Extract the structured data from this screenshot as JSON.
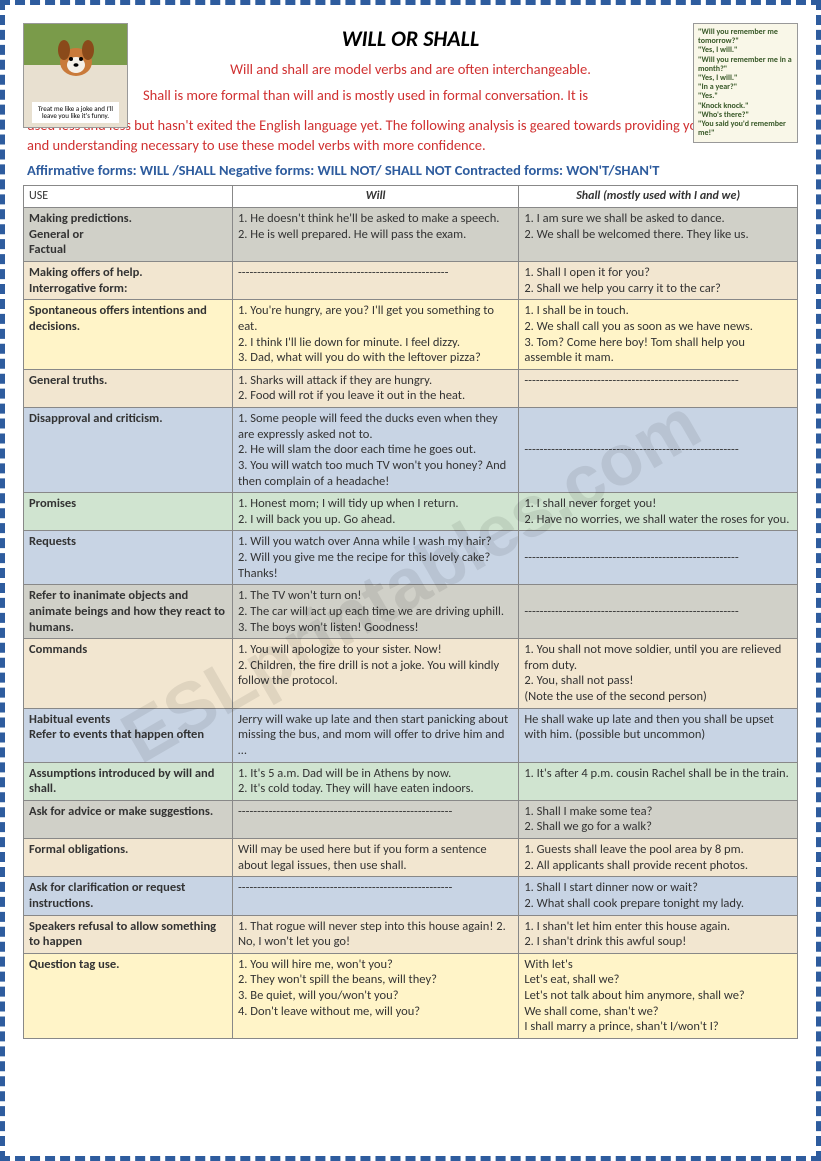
{
  "title": "WILL OR SHALL",
  "dog_caption": "Treat me like a joke and I'll leave you like it's funny.",
  "joke_lines": "\"Will you remember me tomorrow?\"\n\"Yes, I will.\"\n\"Will you remember me in a month?\"\n\"Yes, I will.\"\n\"In a year?\"\n\"Yes.\"\n\"Knock knock.\"\n\"Who's there?\"\n\"You said you'd remember me!\"",
  "intro1": "Will and shall are model verbs and are often interchangeable.",
  "intro2": "Shall is more formal than will and is mostly used in formal conversation. It is",
  "intro_rest": "used less and less but hasn't exited the English language yet. The following analysis is geared towards providing you with the tools and understanding necessary to use these model verbs with more confidence.",
  "forms_line": "Affirmative forms:  WILL /SHALL     Negative forms: WILL NOT/ SHALL NOT   Contracted forms: WON'T/SHAN'T",
  "head_use": "USE",
  "head_will": "Will",
  "head_shall": "Shall  (mostly used with I and we)",
  "rows": [
    {
      "bg": "bg-gray",
      "use": "Making predictions.\nGeneral or\nFactual",
      "will": "1. He doesn't think he'll be asked to make a speech.\n2. He is well prepared. He will pass the exam.",
      "shall": "1. I am sure we shall be asked to dance.\n2. We shall be welcomed there. They like us."
    },
    {
      "bg": "bg-tan",
      "use": "Making offers of help.\nInterrogative form:",
      "will": "-------------------------------------------------------",
      "shall": "1. Shall I open it for you?\n2. Shall we help you carry it to the car?"
    },
    {
      "bg": "bg-yel",
      "use": "Spontaneous offers intentions and decisions.",
      "will": "1. You're hungry, are you? I'll get you something to eat.\n2. I think I'll lie down for minute. I feel dizzy.\n3. Dad, what will you do with the leftover pizza?",
      "shall": "1. I shall be in touch.\n2. We shall call you as soon as we have news.\n3. Tom? Come here boy! Tom shall help you assemble it mam."
    },
    {
      "bg": "bg-tan",
      "use": "General truths.",
      "will": "1. Sharks will attack if they are hungry.\n2. Food will rot if you leave it out in the heat.",
      "shall": "--------------------------------------------------------"
    },
    {
      "bg": "bg-blue",
      "use": "Disapproval  and criticism.",
      "will": "1. Some people will feed the ducks even when they are expressly asked not to.\n2. He will slam the door each time he goes out.\n3. You will watch too much TV won't you honey? And then complain of a headache!",
      "shall": "\n\n--------------------------------------------------------"
    },
    {
      "bg": "bg-grn",
      "use": "Promises",
      "will": "1. Honest mom; I will tidy up when I return.\n2. I will back you up. Go ahead.",
      "shall": "1. I shall never forget you!\n2. Have no worries, we shall water the roses for you."
    },
    {
      "bg": "bg-blue",
      "use": "Requests",
      "will": "1. Will you watch over Anna while I wash my hair?\n2. Will you give me the recipe for this lovely cake? Thanks!",
      "shall": "\n--------------------------------------------------------"
    },
    {
      "bg": "bg-gray",
      "use": "Refer to inanimate objects and animate beings and how they react to humans.",
      "will": "1. The TV won't turn on!\n2. The car will act up each time we are driving uphill.  3. The boys won't listen! Goodness!",
      "shall": "\n--------------------------------------------------------"
    },
    {
      "bg": "bg-tan",
      "use": "Commands",
      "will": "1. You will apologize to your sister. Now!\n2. Children, the fire drill is not a joke. You will kindly follow the protocol.",
      "shall": "1. You shall not move soldier, until you are relieved from duty.\n2. You, shall not pass!\n(Note the use of the second person)"
    },
    {
      "bg": "bg-blue",
      "use": "Habitual events\nRefer to events that happen often",
      "will": "Jerry will wake up late and then start panicking about missing the bus, and mom will offer to drive him and …",
      "shall": "He shall wake up late and then you shall be upset with him. (possible but uncommon)"
    },
    {
      "bg": "bg-grn",
      "use": "Assumptions introduced by will and shall.",
      "will": "1. It's 5 a.m. Dad will be in Athens by now.\n2. It's cold today. They will have eaten indoors.",
      "shall": "1. It's after 4 p.m. cousin Rachel shall be in the train."
    },
    {
      "bg": "bg-gray",
      "use": "Ask for advice or make suggestions.",
      "will": "--------------------------------------------------------",
      "shall": "1. Shall I make some tea?\n2. Shall we go for a walk?"
    },
    {
      "bg": "bg-tan",
      "use": "Formal obligations.",
      "will": "Will may be used here but if you form a sentence about legal issues, then use shall.",
      "shall": "1. Guests shall leave the pool area by 8 pm.\n2. All applicants shall provide recent photos."
    },
    {
      "bg": "bg-blue",
      "use": "Ask for clarification or request instructions.",
      "will": "--------------------------------------------------------",
      "shall": "1. Shall I start dinner now or wait?\n2. What shall cook prepare tonight my lady."
    },
    {
      "bg": "bg-tan",
      "use": "Speakers refusal to allow something to happen",
      "will": "1. That rogue will never step into this house again!  2. No, I won't let you go!",
      "shall": "1. I shan't let him enter this house again.\n2. I shan't drink this awful soup!"
    },
    {
      "bg": "bg-yel",
      "use": "Question tag use.",
      "will": "1. You will hire me, won't you?\n2. They won't spill the beans, will they?\n3. Be quiet, will you/won't you?\n4. Don't leave without me, will you?",
      "shall": "With let's\nLet's eat, shall we?\nLet's not talk about him anymore, shall we?\nWe shall come, shan't we?\nI shall marry a prince, shan't I/won't I?"
    }
  ],
  "watermark": "ESLprintables.com",
  "colors": {
    "border": "#2e5c9e",
    "title": "#000000",
    "intro_red": "#d03030",
    "forms_blue": "#2e5c9e",
    "cell_border": "#888888",
    "text": "#333333",
    "bg_gray": "#d0d0c8",
    "bg_tan": "#f2e6d0",
    "bg_yel": "#fff4c8",
    "bg_blue": "#c8d4e4",
    "bg_grn": "#d0e4d0"
  }
}
